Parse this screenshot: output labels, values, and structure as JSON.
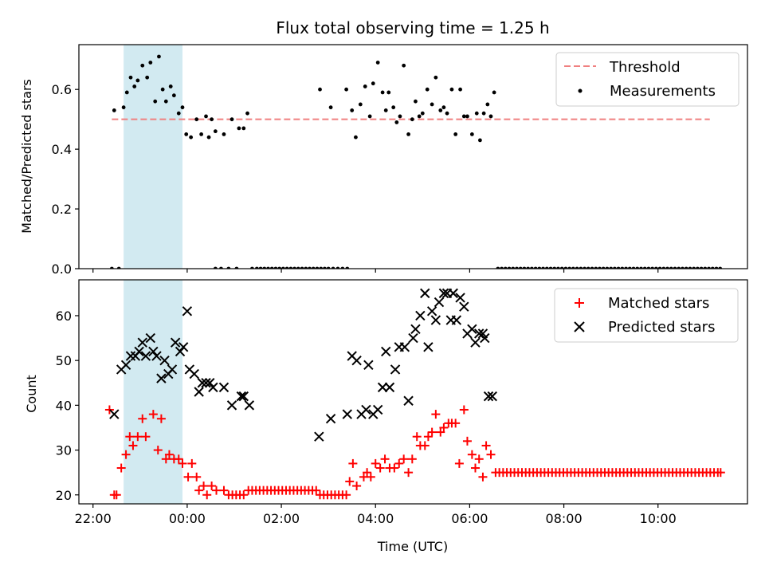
{
  "chart_data": [
    {
      "type": "scatter",
      "title": "Flux total observing time = 1.25 h",
      "xlabel": "",
      "ylabel": "Matched/Predicted stars",
      "xlim": [
        -2.3,
        11.9
      ],
      "ylim": [
        0,
        0.75
      ],
      "x_unit": "hours relative to 00:00 UTC",
      "grid": false,
      "legend_position": "top-right",
      "shaded_span": {
        "x0": -1.35,
        "x1": -0.1,
        "color": "#add8e6"
      },
      "yticks": [
        "0.0",
        "0.2",
        "0.4",
        "0.6"
      ],
      "series": [
        {
          "name": "Threshold",
          "kind": "dashed-line",
          "color": "#f08080",
          "x": [
            -1.6,
            11.1
          ],
          "y": [
            0.5,
            0.5
          ]
        },
        {
          "name": "Measurements",
          "kind": "points",
          "color": "#000000",
          "x": [
            -1.6,
            -1.45,
            -1.55,
            -1.35,
            -1.28,
            -1.2,
            -1.12,
            -1.05,
            -0.95,
            -0.85,
            -0.78,
            -0.68,
            -0.6,
            -0.52,
            -0.45,
            -0.35,
            -0.28,
            -0.18,
            -0.1,
            -0.02,
            0.08,
            0.2,
            0.3,
            0.4,
            0.46,
            0.52,
            0.6,
            0.78,
            0.95,
            1.1,
            1.2,
            1.28,
            2.82,
            3.05,
            3.38,
            3.5,
            3.58,
            3.68,
            3.78,
            3.88,
            3.95,
            4.05,
            4.15,
            4.22,
            4.28,
            4.38,
            4.45,
            4.52,
            4.6,
            4.7,
            4.78,
            4.85,
            4.93,
            5.0,
            5.1,
            5.2,
            5.28,
            5.38,
            5.45,
            5.52,
            5.62,
            5.7,
            5.8,
            5.88,
            5.95,
            6.05,
            6.15,
            6.22,
            6.3,
            6.38,
            6.45,
            6.52
          ],
          "y": [
            0.0,
            0.0,
            0.53,
            0.54,
            0.59,
            0.64,
            0.61,
            0.63,
            0.68,
            0.64,
            0.69,
            0.56,
            0.71,
            0.6,
            0.56,
            0.61,
            0.58,
            0.52,
            0.54,
            0.45,
            0.44,
            0.5,
            0.45,
            0.51,
            0.44,
            0.5,
            0.46,
            0.45,
            0.5,
            0.47,
            0.47,
            0.52,
            0.6,
            0.54,
            0.6,
            0.53,
            0.44,
            0.55,
            0.61,
            0.51,
            0.62,
            0.69,
            0.59,
            0.53,
            0.59,
            0.54,
            0.49,
            0.51,
            0.68,
            0.45,
            0.5,
            0.56,
            0.51,
            0.52,
            0.6,
            0.55,
            0.64,
            0.53,
            0.54,
            0.52,
            0.6,
            0.45,
            0.6,
            0.51,
            0.51,
            0.45,
            0.52,
            0.43,
            0.52,
            0.55,
            0.51,
            0.59
          ]
        },
        {
          "name": "",
          "kind": "points",
          "color": "#000000",
          "x": [
            0.6,
            0.72,
            0.88,
            1.05,
            1.38,
            1.48,
            1.56,
            1.64,
            1.72,
            1.8,
            1.88,
            1.96,
            2.04,
            2.12,
            2.2,
            2.28,
            2.36,
            2.44,
            2.52,
            2.6,
            2.68,
            2.76,
            2.84,
            2.92,
            3.0,
            3.1,
            3.2,
            3.3,
            3.4,
            6.6,
            6.68,
            6.76,
            6.84,
            6.92,
            7.0,
            7.08,
            7.16,
            7.24,
            7.32,
            7.4,
            7.48,
            7.56,
            7.64,
            7.72,
            7.8,
            7.88,
            7.96,
            8.04,
            8.12,
            8.2,
            8.28,
            8.36,
            8.44,
            8.52,
            8.6,
            8.68,
            8.76,
            8.84,
            8.92,
            9.0,
            9.08,
            9.16,
            9.24,
            9.32,
            9.4,
            9.48,
            9.56,
            9.64,
            9.72,
            9.8,
            9.88,
            9.96,
            10.04,
            10.12,
            10.2,
            10.28,
            10.36,
            10.44,
            10.52,
            10.6,
            10.68,
            10.76,
            10.84,
            10.92,
            11.0,
            11.08,
            11.16,
            11.24,
            11.32
          ],
          "y": [
            0,
            0,
            0,
            0,
            0,
            0,
            0,
            0,
            0,
            0,
            0,
            0,
            0,
            0,
            0,
            0,
            0,
            0,
            0,
            0,
            0,
            0,
            0,
            0,
            0,
            0,
            0,
            0,
            0,
            0,
            0,
            0,
            0,
            0,
            0,
            0,
            0,
            0,
            0,
            0,
            0,
            0,
            0,
            0,
            0,
            0,
            0,
            0,
            0,
            0,
            0,
            0,
            0,
            0,
            0,
            0,
            0,
            0,
            0,
            0,
            0,
            0,
            0,
            0,
            0,
            0,
            0,
            0,
            0,
            0,
            0,
            0,
            0,
            0,
            0,
            0,
            0,
            0,
            0,
            0,
            0,
            0,
            0,
            0,
            0,
            0,
            0,
            0,
            0
          ]
        }
      ]
    },
    {
      "type": "scatter",
      "title": "",
      "xlabel": "Time (UTC)",
      "ylabel": "Count",
      "xlim": [
        -2.3,
        11.9
      ],
      "ylim": [
        18,
        68
      ],
      "x_unit": "hours relative to 00:00 UTC",
      "grid": false,
      "legend_position": "top-right",
      "shaded_span": {
        "x0": -1.35,
        "x1": -0.1,
        "color": "#add8e6"
      },
      "xticks": [
        "22:00",
        "00:00",
        "02:00",
        "04:00",
        "06:00",
        "08:00",
        "10:00"
      ],
      "yticks": [
        "20",
        "30",
        "40",
        "50",
        "60"
      ],
      "series": [
        {
          "name": "Matched stars",
          "marker": "plus",
          "color": "#ff0000",
          "x": [
            -1.65,
            -1.55,
            -1.5,
            -1.4,
            -1.3,
            -1.22,
            -1.15,
            -1.05,
            -0.95,
            -0.88,
            -0.72,
            -0.62,
            -0.55,
            -0.45,
            -0.38,
            -0.28,
            -0.18,
            -0.1,
            0.02,
            0.1,
            0.2,
            0.25,
            0.35,
            0.42,
            0.52,
            0.62,
            0.78,
            0.88,
            0.96,
            1.04,
            1.12,
            1.2,
            1.3,
            1.38,
            1.46,
            1.54,
            1.62,
            1.7,
            1.78,
            1.86,
            1.94,
            2.02,
            2.1,
            2.18,
            2.26,
            2.34,
            2.42,
            2.5,
            2.58,
            2.66,
            2.74,
            2.82,
            2.9,
            2.98,
            3.06,
            3.14,
            3.22,
            3.3,
            3.38,
            3.45,
            3.52,
            3.6,
            3.75,
            3.82,
            3.9,
            4.0,
            4.1,
            4.2,
            4.3,
            4.4,
            4.5,
            4.6,
            4.7,
            4.78,
            4.88,
            4.95,
            5.05,
            5.12,
            5.2,
            5.28,
            5.38,
            5.45,
            5.55,
            5.62,
            5.7,
            5.78,
            5.88,
            5.95,
            6.05,
            6.12,
            6.2,
            6.28,
            6.35,
            6.45
          ],
          "y": [
            39,
            20,
            20,
            26,
            29,
            33,
            31,
            33,
            37,
            33,
            38,
            30,
            37,
            28,
            29,
            28,
            28,
            27,
            24,
            27,
            24,
            21,
            22,
            20,
            22,
            21,
            21,
            20,
            20,
            20,
            20,
            20,
            21,
            21,
            21,
            21,
            21,
            21,
            21,
            21,
            21,
            21,
            21,
            21,
            21,
            21,
            21,
            21,
            21,
            21,
            21,
            20,
            20,
            20,
            20,
            20,
            20,
            20,
            20,
            23,
            27,
            22,
            24,
            25,
            24,
            27,
            26,
            28,
            26,
            26,
            27,
            28,
            25,
            28,
            33,
            31,
            31,
            33,
            34,
            38,
            34,
            35,
            36,
            36,
            36,
            27,
            39,
            32,
            29,
            26,
            28,
            24,
            31,
            29
          ]
        },
        {
          "name": "",
          "marker": "plus",
          "color": "#ff0000",
          "x": [
            6.55,
            6.63,
            6.71,
            6.79,
            6.87,
            6.95,
            7.03,
            7.11,
            7.19,
            7.27,
            7.35,
            7.43,
            7.51,
            7.59,
            7.67,
            7.75,
            7.83,
            7.91,
            7.99,
            8.07,
            8.15,
            8.23,
            8.31,
            8.39,
            8.47,
            8.55,
            8.63,
            8.71,
            8.79,
            8.87,
            8.95,
            9.03,
            9.11,
            9.19,
            9.27,
            9.35,
            9.43,
            9.51,
            9.59,
            9.67,
            9.75,
            9.83,
            9.91,
            9.99,
            10.07,
            10.15,
            10.23,
            10.31,
            10.39,
            10.47,
            10.55,
            10.63,
            10.71,
            10.79,
            10.87,
            10.95,
            11.03,
            11.11,
            11.19,
            11.27,
            11.33
          ],
          "y": [
            25,
            25,
            25,
            25,
            25,
            25,
            25,
            25,
            25,
            25,
            25,
            25,
            25,
            25,
            25,
            25,
            25,
            25,
            25,
            25,
            25,
            25,
            25,
            25,
            25,
            25,
            25,
            25,
            25,
            25,
            25,
            25,
            25,
            25,
            25,
            25,
            25,
            25,
            25,
            25,
            25,
            25,
            25,
            25,
            25,
            25,
            25,
            25,
            25,
            25,
            25,
            25,
            25,
            25,
            25,
            25,
            25,
            25,
            25,
            25,
            25
          ]
        },
        {
          "name": "Predicted stars",
          "marker": "x",
          "color": "#000000",
          "x": [
            -1.55,
            -1.4,
            -1.3,
            -1.2,
            -1.1,
            -1.02,
            -0.95,
            -0.88,
            -0.78,
            -0.72,
            -0.65,
            -0.55,
            -0.48,
            -0.4,
            -0.32,
            -0.25,
            -0.15,
            -0.08,
            0.0,
            0.05,
            0.15,
            0.25,
            0.32,
            0.4,
            0.48,
            0.55,
            0.78,
            0.95,
            1.15,
            1.2,
            1.32,
            2.8,
            3.05,
            3.4,
            3.5,
            3.6,
            3.7,
            3.8,
            3.85,
            3.95,
            4.05,
            4.15,
            4.22,
            4.3,
            4.42,
            4.5,
            4.62,
            4.7,
            4.8,
            4.85,
            4.95,
            5.05,
            5.12,
            5.2,
            5.28,
            5.35,
            5.45,
            5.52,
            5.6,
            5.65,
            5.72,
            5.8,
            5.88,
            5.95,
            6.05,
            6.12,
            6.2,
            6.28,
            6.32,
            6.4,
            6.48
          ],
          "y": [
            38,
            48,
            49,
            51,
            51,
            52,
            54,
            51,
            55,
            52,
            51,
            46,
            50,
            47,
            48,
            54,
            52,
            53,
            61,
            48,
            47,
            43,
            45,
            45,
            45,
            44,
            44,
            40,
            42,
            42,
            40,
            33,
            37,
            38,
            51,
            50,
            38,
            39,
            49,
            38,
            39,
            44,
            52,
            44,
            48,
            53,
            53,
            41,
            55,
            57,
            60,
            65,
            53,
            61,
            59,
            63,
            65,
            65,
            59,
            65,
            59,
            64,
            62,
            56,
            57,
            54,
            56,
            56,
            55,
            42,
            42
          ]
        }
      ]
    }
  ]
}
